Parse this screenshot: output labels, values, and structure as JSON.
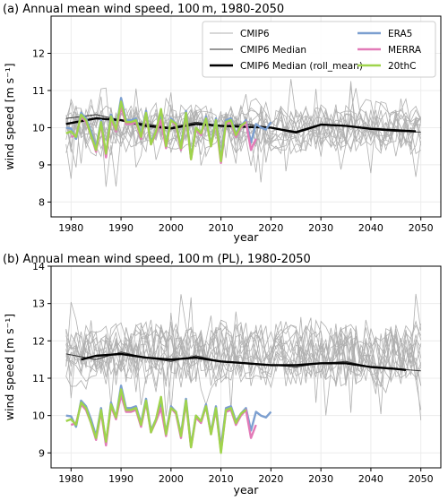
{
  "chart_data": [
    {
      "type": "line",
      "title": "(a) Annual mean wind speed, 100 m, 1980-2050",
      "xlabel": "year",
      "ylabel": "wind speed [m s⁻¹]",
      "xlim": [
        1976,
        2054
      ],
      "ylim": [
        7.6,
        13.0
      ],
      "xticks": [
        1980,
        1990,
        2000,
        2010,
        2020,
        2030,
        2040,
        2050
      ],
      "yticks": [
        8,
        9,
        10,
        11,
        12
      ],
      "grid": true,
      "legend_position": "top-right",
      "legend": [
        {
          "label": "CMIP6",
          "color": "#b0b0b0",
          "width": 1
        },
        {
          "label": "ERA5",
          "color": "#7c9fd0",
          "width": 2.4
        },
        {
          "label": "CMIP6 Median",
          "color": "#333333",
          "width": 1
        },
        {
          "label": "MERRA",
          "color": "#e27bb8",
          "width": 2.4
        },
        {
          "label": "CMIP6 Median (roll_mean)",
          "color": "#000000",
          "width": 2.4
        },
        {
          "label": "20thC",
          "color": "#9fd44c",
          "width": 2.4
        }
      ],
      "ensemble": {
        "x_start": 1979,
        "x_end": 2050,
        "n_members": 14,
        "center": 10.05,
        "spread": 0.55,
        "color": "#b0b0b0"
      },
      "series": [
        {
          "name": "CMIP6 Median",
          "color": "#333333",
          "width": 1,
          "x": [
            1979,
            1985,
            1990,
            1995,
            2000,
            2005,
            2010,
            2015,
            2020,
            2025,
            2030,
            2035,
            2040,
            2045,
            2050
          ],
          "values": [
            10.25,
            10.35,
            10.2,
            10.1,
            10.0,
            10.15,
            10.05,
            10.1,
            10.0,
            9.9,
            10.1,
            10.05,
            9.95,
            9.9,
            9.88
          ]
        },
        {
          "name": "CMIP6 Median (roll_mean)",
          "color": "#000000",
          "width": 2.4,
          "x": [
            1979,
            1985,
            1990,
            1995,
            2000,
            2005,
            2010,
            2015,
            2020,
            2025,
            2030,
            2035,
            2040,
            2045,
            2049
          ],
          "values": [
            10.1,
            10.25,
            10.2,
            10.05,
            9.98,
            10.1,
            10.05,
            10.02,
            10.0,
            9.87,
            10.08,
            10.05,
            9.97,
            9.93,
            9.9
          ]
        },
        {
          "name": "ERA5",
          "color": "#7c9fd0",
          "width": 2.4,
          "x": [
            1979,
            1980,
            1981,
            1982,
            1983,
            1984,
            1985,
            1986,
            1987,
            1988,
            1989,
            1990,
            1991,
            1992,
            1993,
            1994,
            1995,
            1996,
            1997,
            1998,
            1999,
            2000,
            2001,
            2002,
            2003,
            2004,
            2005,
            2006,
            2007,
            2008,
            2009,
            2010,
            2011,
            2012,
            2013,
            2014,
            2015,
            2016,
            2017,
            2018,
            2019,
            2020
          ],
          "values": [
            10.0,
            9.98,
            9.7,
            10.4,
            10.25,
            9.9,
            9.45,
            10.2,
            9.25,
            10.35,
            9.95,
            10.8,
            10.2,
            10.2,
            10.25,
            9.8,
            10.45,
            9.6,
            9.9,
            10.3,
            9.55,
            10.25,
            10.1,
            9.5,
            10.45,
            9.2,
            10.0,
            9.85,
            10.3,
            9.55,
            10.25,
            9.15,
            10.2,
            10.25,
            9.85,
            10.05,
            10.2,
            9.6,
            10.1,
            10.0,
            9.95,
            10.15
          ]
        },
        {
          "name": "MERRA",
          "color": "#e27bb8",
          "width": 2.4,
          "x": [
            1980,
            1981,
            1982,
            1983,
            1984,
            1985,
            1986,
            1987,
            1988,
            1989,
            1990,
            1991,
            1992,
            1993,
            1994,
            1995,
            1996,
            1997,
            1998,
            1999,
            2000,
            2001,
            2002,
            2003,
            2004,
            2005,
            2006,
            2007,
            2008,
            2009,
            2010,
            2011,
            2012,
            2013,
            2014,
            2015,
            2016,
            2017
          ],
          "values": [
            9.75,
            9.8,
            10.3,
            10.15,
            9.8,
            9.35,
            10.1,
            9.2,
            10.25,
            9.9,
            10.55,
            10.1,
            10.1,
            10.15,
            9.7,
            10.35,
            9.55,
            9.85,
            10.2,
            9.45,
            10.2,
            10.05,
            9.4,
            10.35,
            9.15,
            9.95,
            9.8,
            10.25,
            9.5,
            10.15,
            9.05,
            10.1,
            10.15,
            9.75,
            10.0,
            10.15,
            9.4,
            9.7
          ]
        },
        {
          "name": "20thC",
          "color": "#9fd44c",
          "width": 2.4,
          "x": [
            1979,
            1980,
            1981,
            1982,
            1983,
            1984,
            1985,
            1986,
            1987,
            1988,
            1989,
            1990,
            1991,
            1992,
            1993,
            1994,
            1995,
            1996,
            1997,
            1998,
            1999,
            2000,
            2001,
            2002,
            2003,
            2004,
            2005,
            2006,
            2007,
            2008,
            2009,
            2010,
            2011,
            2012,
            2013,
            2014,
            2015
          ],
          "values": [
            9.85,
            9.9,
            9.75,
            10.35,
            10.2,
            9.8,
            9.4,
            10.15,
            9.3,
            10.3,
            9.95,
            10.7,
            10.15,
            10.15,
            10.2,
            9.75,
            10.4,
            9.55,
            9.9,
            10.5,
            9.5,
            10.2,
            10.1,
            9.45,
            10.4,
            9.15,
            10.0,
            9.85,
            10.25,
            9.5,
            10.2,
            9.1,
            10.15,
            10.2,
            9.8,
            10.05,
            10.15
          ]
        }
      ]
    },
    {
      "type": "line",
      "title": "(b) Annual mean wind speed, 100 m (PL), 1980-2050",
      "xlabel": "year",
      "ylabel": "wind speed [m s⁻¹]",
      "xlim": [
        1976,
        2054
      ],
      "ylim": [
        8.6,
        14.0
      ],
      "xticks": [
        1980,
        1990,
        2000,
        2010,
        2020,
        2030,
        2040,
        2050
      ],
      "yticks": [
        9,
        10,
        11,
        12,
        13,
        14
      ],
      "grid": true,
      "ensemble": {
        "x_start": 1979,
        "x_end": 2050,
        "n_members": 14,
        "center": 11.55,
        "spread": 0.75,
        "color": "#b0b0b0"
      },
      "series": [
        {
          "name": "CMIP6 Median",
          "color": "#333333",
          "width": 1,
          "x": [
            1979,
            1985,
            1990,
            1995,
            2000,
            2005,
            2010,
            2015,
            2020,
            2025,
            2030,
            2035,
            2040,
            2045,
            2050
          ],
          "values": [
            11.65,
            11.5,
            11.7,
            11.55,
            11.45,
            11.6,
            11.45,
            11.4,
            11.35,
            11.3,
            11.4,
            11.45,
            11.3,
            11.25,
            11.2
          ]
        },
        {
          "name": "CMIP6 Median (roll_mean)",
          "color": "#000000",
          "width": 2.4,
          "x": [
            1982,
            1985,
            1990,
            1995,
            2000,
            2005,
            2010,
            2015,
            2020,
            2025,
            2030,
            2035,
            2040,
            2045,
            2047
          ],
          "values": [
            11.5,
            11.6,
            11.65,
            11.55,
            11.5,
            11.55,
            11.45,
            11.4,
            11.35,
            11.35,
            11.4,
            11.4,
            11.3,
            11.25,
            11.22
          ]
        },
        {
          "name": "ERA5",
          "color": "#7c9fd0",
          "width": 2.4,
          "x": [
            1979,
            1980,
            1981,
            1982,
            1983,
            1984,
            1985,
            1986,
            1987,
            1988,
            1989,
            1990,
            1991,
            1992,
            1993,
            1994,
            1995,
            1996,
            1997,
            1998,
            1999,
            2000,
            2001,
            2002,
            2003,
            2004,
            2005,
            2006,
            2007,
            2008,
            2009,
            2010,
            2011,
            2012,
            2013,
            2014,
            2015,
            2016,
            2017,
            2018,
            2019,
            2020
          ],
          "values": [
            10.0,
            9.98,
            9.7,
            10.4,
            10.25,
            9.9,
            9.45,
            10.2,
            9.25,
            10.35,
            9.95,
            10.8,
            10.2,
            10.2,
            10.25,
            9.8,
            10.45,
            9.6,
            9.9,
            10.3,
            9.55,
            10.25,
            10.1,
            9.5,
            10.45,
            9.2,
            10.0,
            9.85,
            10.3,
            9.55,
            10.25,
            9.15,
            10.2,
            10.25,
            9.85,
            10.05,
            10.2,
            9.6,
            10.1,
            10.0,
            9.95,
            10.1
          ]
        },
        {
          "name": "MERRA",
          "color": "#e27bb8",
          "width": 2.4,
          "x": [
            1980,
            1981,
            1982,
            1983,
            1984,
            1985,
            1986,
            1987,
            1988,
            1989,
            1990,
            1991,
            1992,
            1993,
            1994,
            1995,
            1996,
            1997,
            1998,
            1999,
            2000,
            2001,
            2002,
            2003,
            2004,
            2005,
            2006,
            2007,
            2008,
            2009,
            2010,
            2011,
            2012,
            2013,
            2014,
            2015,
            2016,
            2017
          ],
          "values": [
            9.75,
            9.8,
            10.3,
            10.15,
            9.8,
            9.35,
            10.1,
            9.2,
            10.25,
            9.9,
            10.55,
            10.1,
            10.1,
            10.15,
            9.7,
            10.35,
            9.55,
            9.85,
            10.2,
            9.45,
            10.2,
            10.05,
            9.4,
            10.35,
            9.15,
            9.95,
            9.8,
            10.25,
            9.5,
            10.15,
            9.05,
            10.1,
            10.15,
            9.75,
            10.0,
            10.15,
            9.4,
            9.75
          ]
        },
        {
          "name": "20thC",
          "color": "#9fd44c",
          "width": 2.4,
          "x": [
            1979,
            1980,
            1981,
            1982,
            1983,
            1984,
            1985,
            1986,
            1987,
            1988,
            1989,
            1990,
            1991,
            1992,
            1993,
            1994,
            1995,
            1996,
            1997,
            1998,
            1999,
            2000,
            2001,
            2002,
            2003,
            2004,
            2005,
            2006,
            2007,
            2008,
            2009,
            2010,
            2011,
            2012,
            2013,
            2014,
            2015
          ],
          "values": [
            9.85,
            9.9,
            9.75,
            10.35,
            10.2,
            9.8,
            9.4,
            10.15,
            9.3,
            10.3,
            9.95,
            10.7,
            10.15,
            10.15,
            10.2,
            9.75,
            10.4,
            9.55,
            9.9,
            10.5,
            9.5,
            10.2,
            10.1,
            9.45,
            10.4,
            9.15,
            10.0,
            9.85,
            10.25,
            9.5,
            10.2,
            9.0,
            10.15,
            10.2,
            9.8,
            10.05,
            10.15
          ]
        }
      ]
    }
  ]
}
